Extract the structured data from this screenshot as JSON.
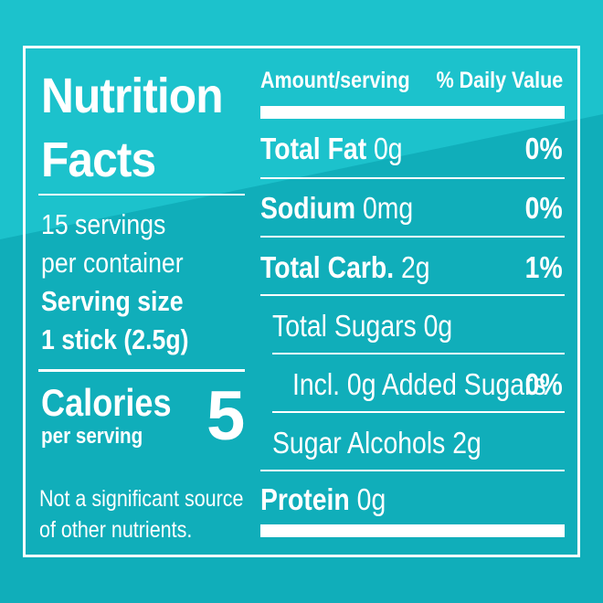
{
  "colors": {
    "background_light": "#1cc2cc",
    "background_dark": "#10aeba",
    "text": "#ffffff"
  },
  "left": {
    "title_line1": "Nutrition",
    "title_line2": "Facts",
    "servings_line1": "15 servings",
    "servings_line2": "per container",
    "serving_size_label": "Serving size",
    "serving_size_value": "1 stick (2.5g)",
    "calories_label": "Calories",
    "calories_sub": "per serving",
    "calories_value": "5",
    "footnote_line1": "Not a significant source",
    "footnote_line2": "of other nutrients."
  },
  "right": {
    "header_amount": "Amount/serving",
    "header_dv": "% Daily Value",
    "rows": [
      {
        "name": "Total Fat",
        "amount": "0g",
        "dv": "0%"
      },
      {
        "name": "Sodium",
        "amount": "0mg",
        "dv": "0%"
      },
      {
        "name": "Total Carb.",
        "amount": "2g",
        "dv": "1%"
      },
      {
        "label": "Total Sugars 0g"
      },
      {
        "label": "Incl. 0g Added Sugars",
        "dv": "0%"
      },
      {
        "label": "Sugar Alcohols 2g"
      },
      {
        "name": "Protein",
        "amount": "0g"
      }
    ]
  }
}
